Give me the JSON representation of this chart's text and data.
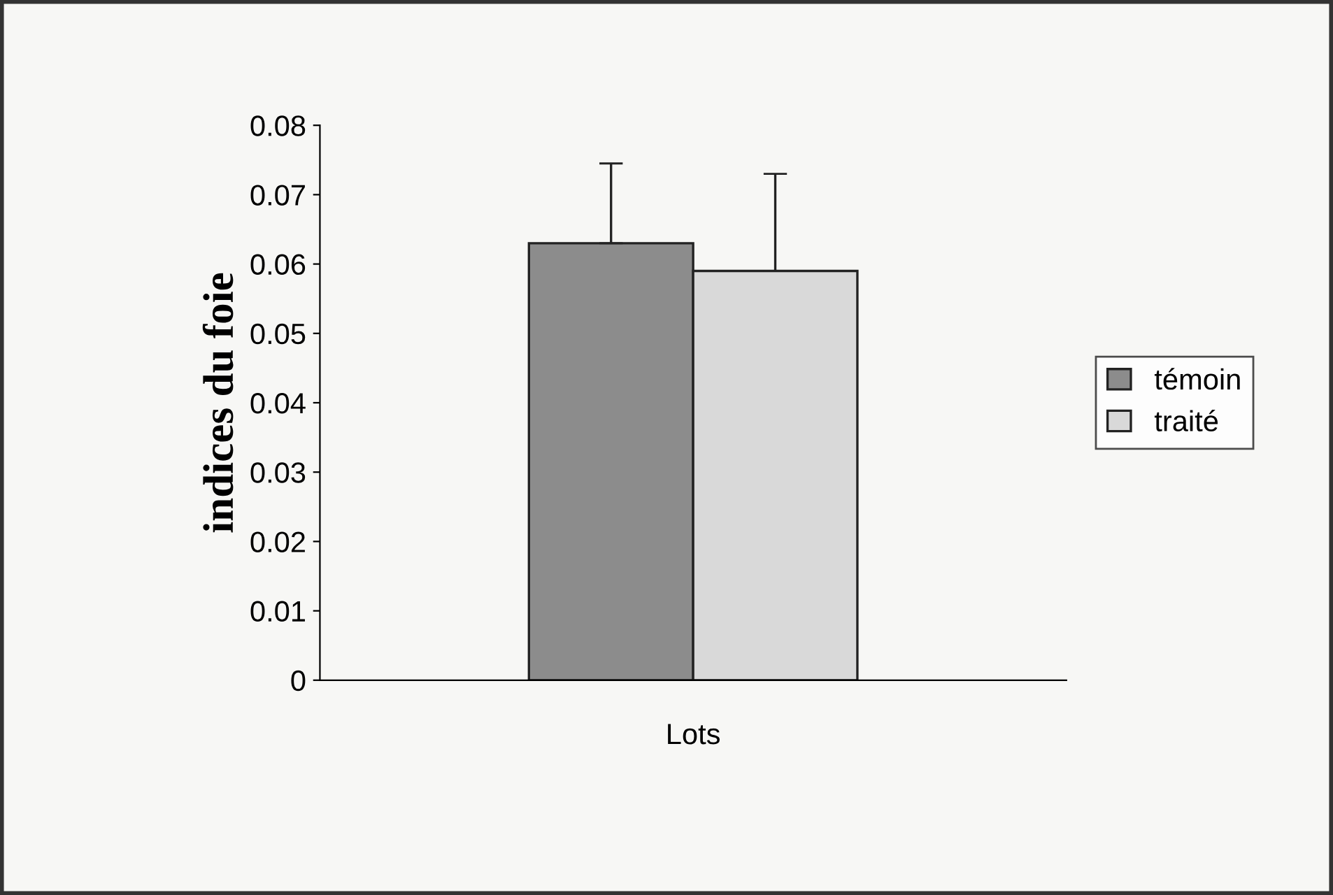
{
  "chart_data": {
    "type": "bar",
    "ylabel": "indices du foie",
    "categories": [
      "Lots"
    ],
    "series": [
      {
        "name": "témoin",
        "color": "#8c8c8c",
        "values": [
          0.063
        ],
        "errors": [
          [
            0.063,
            0.0745
          ]
        ]
      },
      {
        "name": "traité",
        "color": "#d9d9d9",
        "values": [
          0.059
        ],
        "errors": [
          [
            0.059,
            0.073
          ]
        ]
      }
    ],
    "ylim": [
      0,
      0.08
    ],
    "yticks": [
      0,
      0.01,
      0.02,
      0.03,
      0.04,
      0.05,
      0.06,
      0.07,
      0.08
    ],
    "grid": false,
    "legend": "right"
  }
}
